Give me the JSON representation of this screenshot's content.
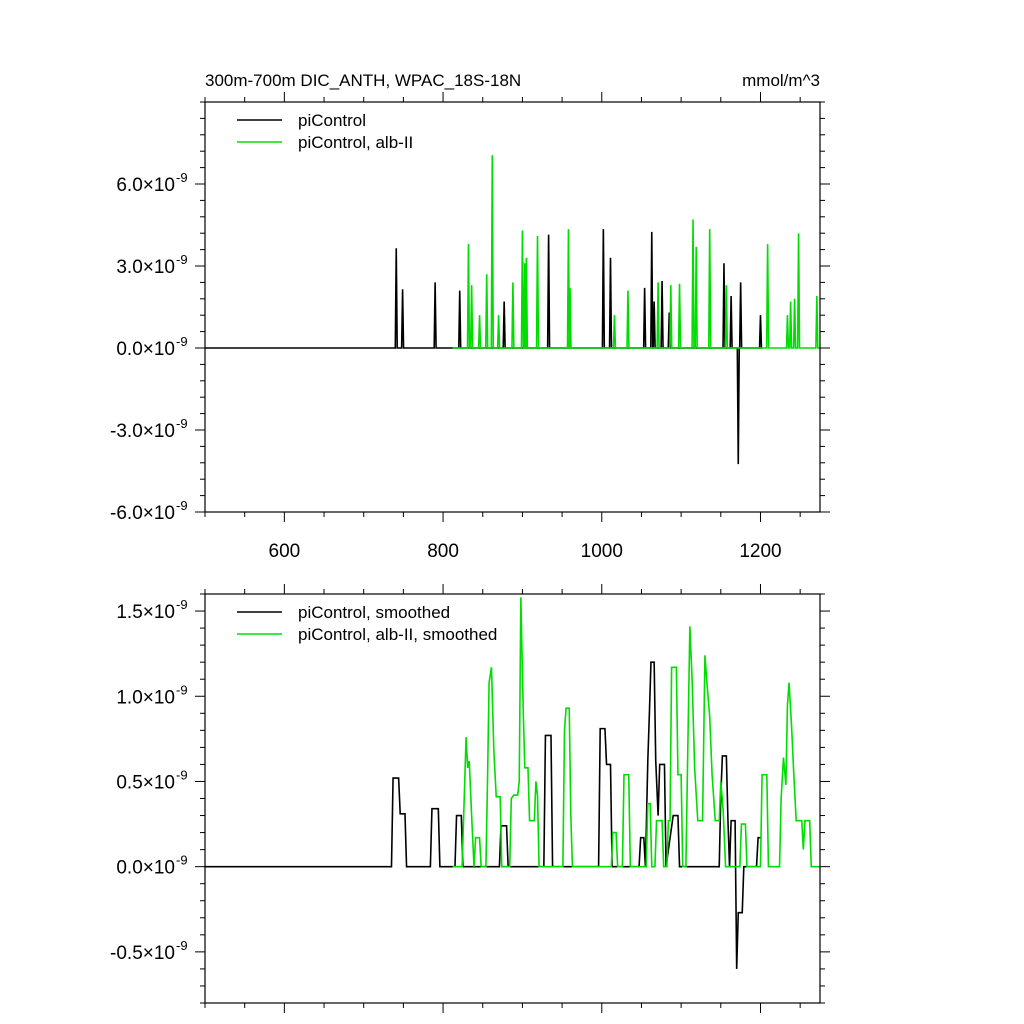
{
  "chart_data": [
    {
      "type": "line",
      "title": "300m-700m DIC_ANTH, WPAC_18S-18N",
      "units": "mmol/m^3",
      "xlim": [
        500,
        1275
      ],
      "ylim": [
        -6.0,
        9.0
      ],
      "y_scale_exponent": "-9",
      "x_ticks": [
        600,
        800,
        1000,
        1200
      ],
      "x_tick_labels": [
        "600",
        "800",
        "1000",
        "1200"
      ],
      "y_ticks": [
        6.0,
        3.0,
        0.0,
        -3.0,
        -6.0
      ],
      "y_tick_labels": [
        "6.0",
        "3.0",
        "0.0",
        "-3.0",
        "-6.0"
      ],
      "y_tick_suffix": "×10",
      "y_tick_exponent": "-9",
      "legend_position": "top-left",
      "series": [
        {
          "name": "piControl",
          "color": "#000000",
          "x_range": [
            500,
            1200
          ],
          "spikes": [
            [
              741,
              3.65
            ],
            [
              749,
              2.15
            ],
            [
              790,
              2.4
            ],
            [
              821,
              2.1
            ],
            [
              877,
              1.7
            ],
            [
              933,
              4.15
            ],
            [
              1002,
              4.35
            ],
            [
              1011,
              3.3
            ],
            [
              1054,
              2.2
            ],
            [
              1063,
              4.25
            ],
            [
              1066,
              1.7
            ],
            [
              1076,
              2.45
            ],
            [
              1085,
              1.3
            ],
            [
              1154,
              3.1
            ],
            [
              1163,
              1.9
            ],
            [
              1172,
              -4.25
            ],
            [
              1175,
              2.4
            ],
            [
              1200,
              1.2
            ]
          ]
        },
        {
          "name": "piControl, alb-II",
          "color": "#00dd00",
          "x_range": [
            812,
            1275
          ],
          "spikes": [
            [
              832,
              3.8
            ],
            [
              836,
              2.3
            ],
            [
              846,
              1.2
            ],
            [
              855,
              2.7
            ],
            [
              862,
              7.05
            ],
            [
              870,
              1.2
            ],
            [
              888,
              2.4
            ],
            [
              900,
              4.3
            ],
            [
              903,
              3.1
            ],
            [
              905,
              3.3
            ],
            [
              919,
              4.1
            ],
            [
              958,
              4.35
            ],
            [
              960,
              2.2
            ],
            [
              1016,
              1.2
            ],
            [
              1033,
              2.1
            ],
            [
              1071,
              2.4
            ],
            [
              1087,
              2.3
            ],
            [
              1098,
              2.35
            ],
            [
              1115,
              4.7
            ],
            [
              1119,
              3.7
            ],
            [
              1136,
              4.35
            ],
            [
              1157,
              2.3
            ],
            [
              1209,
              3.8
            ],
            [
              1234,
              1.2
            ],
            [
              1238,
              1.7
            ],
            [
              1243,
              1.8
            ],
            [
              1248,
              4.2
            ],
            [
              1271,
              1.9
            ]
          ]
        }
      ]
    },
    {
      "type": "line",
      "xlim": [
        500,
        1275
      ],
      "ylim": [
        -0.8,
        1.6
      ],
      "x_ticks": [
        600,
        800,
        1000,
        1200
      ],
      "y_ticks": [
        1.5,
        1.0,
        0.5,
        0.0,
        -0.5
      ],
      "y_tick_labels": [
        "1.5",
        "1.0",
        "0.5",
        "0.0",
        "-0.5"
      ],
      "y_tick_suffix": "×10",
      "y_tick_exponent": "-9",
      "legend_position": "top-left",
      "series": [
        {
          "name": "piControl, smoothed",
          "color": "#000000",
          "x_range": [
            500,
            1200
          ],
          "points": [
            [
              500,
              0
            ],
            [
              735,
              0
            ],
            [
              737,
              0.52
            ],
            [
              744,
              0.52
            ],
            [
              746,
              0.31
            ],
            [
              752,
              0.31
            ],
            [
              754,
              0
            ],
            [
              784,
              0
            ],
            [
              786,
              0.34
            ],
            [
              794,
              0.34
            ],
            [
              796,
              0
            ],
            [
              815,
              0
            ],
            [
              817,
              0.3
            ],
            [
              823,
              0.3
            ],
            [
              825,
              0
            ],
            [
              871,
              0
            ],
            [
              873,
              0.24
            ],
            [
              880,
              0.24
            ],
            [
              882,
              0
            ],
            [
              927,
              0
            ],
            [
              929,
              0.77
            ],
            [
              936,
              0.77
            ],
            [
              938,
              0
            ],
            [
              996,
              0
            ],
            [
              998,
              0.81
            ],
            [
              1004,
              0.81
            ],
            [
              1006,
              0.6
            ],
            [
              1011,
              0.6
            ],
            [
              1013,
              0
            ],
            [
              1047,
              0
            ],
            [
              1049,
              0.17
            ],
            [
              1053,
              0.17
            ],
            [
              1055,
              0
            ],
            [
              1058,
              0.62
            ],
            [
              1060,
              0.9
            ],
            [
              1062,
              1.2
            ],
            [
              1066,
              1.2
            ],
            [
              1068,
              0.62
            ],
            [
              1071,
              0.3
            ],
            [
              1073,
              0.6
            ],
            [
              1079,
              0.6
            ],
            [
              1081,
              0
            ],
            [
              1090,
              0.3
            ],
            [
              1096,
              0.3
            ],
            [
              1098,
              0
            ],
            [
              1148,
              0
            ],
            [
              1150,
              0.42
            ],
            [
              1152,
              0.65
            ],
            [
              1157,
              0.65
            ],
            [
              1159,
              0.27
            ],
            [
              1161,
              0
            ],
            [
              1163,
              0.27
            ],
            [
              1168,
              0.27
            ],
            [
              1170,
              -0.6
            ],
            [
              1172,
              -0.27
            ],
            [
              1177,
              -0.27
            ],
            [
              1179,
              0
            ],
            [
              1195,
              0
            ],
            [
              1197,
              0.17
            ],
            [
              1200,
              0.17
            ]
          ]
        },
        {
          "name": "piControl, alb-II, smoothed",
          "color": "#00dd00",
          "x_range": [
            812,
            1275
          ],
          "points": [
            [
              812,
              0
            ],
            [
              824,
              0
            ],
            [
              826,
              0.3
            ],
            [
              829,
              0.76
            ],
            [
              831,
              0.58
            ],
            [
              833,
              0.62
            ],
            [
              836,
              0.3
            ],
            [
              839,
              0
            ],
            [
              841,
              0.17
            ],
            [
              846,
              0.17
            ],
            [
              848,
              0
            ],
            [
              854,
              0
            ],
            [
              856,
              0.5
            ],
            [
              858,
              1.08
            ],
            [
              861,
              1.17
            ],
            [
              864,
              0.68
            ],
            [
              867,
              0.41
            ],
            [
              872,
              0.41
            ],
            [
              874,
              0
            ],
            [
              884,
              0
            ],
            [
              886,
              0.4
            ],
            [
              889,
              0.42
            ],
            [
              894,
              0.42
            ],
            [
              896,
              0.5
            ],
            [
              898,
              1.58
            ],
            [
              901,
              0.92
            ],
            [
              903,
              0.58
            ],
            [
              907,
              0.58
            ],
            [
              909,
              0.27
            ],
            [
              915,
              0.27
            ],
            [
              917,
              0.5
            ],
            [
              919,
              0.42
            ],
            [
              921,
              0
            ],
            [
              951,
              0
            ],
            [
              953,
              0.8
            ],
            [
              955,
              0.93
            ],
            [
              959,
              0.93
            ],
            [
              961,
              0.3
            ],
            [
              963,
              0
            ],
            [
              1012,
              0
            ],
            [
              1014,
              0.2
            ],
            [
              1018,
              0.2
            ],
            [
              1020,
              0
            ],
            [
              1026,
              0
            ],
            [
              1028,
              0.54
            ],
            [
              1034,
              0.54
            ],
            [
              1036,
              0
            ],
            [
              1056,
              0
            ],
            [
              1058,
              0.37
            ],
            [
              1061,
              0.37
            ],
            [
              1063,
              0
            ],
            [
              1067,
              0
            ],
            [
              1069,
              0.27
            ],
            [
              1076,
              0.27
            ],
            [
              1078,
              0
            ],
            [
              1082,
              0
            ],
            [
              1084,
              0.27
            ],
            [
              1086,
              0.27
            ],
            [
              1088,
              1.17
            ],
            [
              1094,
              1.17
            ],
            [
              1096,
              0.54
            ],
            [
              1100,
              0.54
            ],
            [
              1102,
              0
            ],
            [
              1106,
              0
            ],
            [
              1108,
              0.58
            ],
            [
              1111,
              1.41
            ],
            [
              1114,
              1.08
            ],
            [
              1117,
              0.58
            ],
            [
              1121,
              0.27
            ],
            [
              1127,
              0.27
            ],
            [
              1130,
              1.24
            ],
            [
              1133,
              1.05
            ],
            [
              1136,
              0.88
            ],
            [
              1139,
              0.54
            ],
            [
              1143,
              0.27
            ],
            [
              1148,
              0.27
            ],
            [
              1150,
              0.5
            ],
            [
              1153,
              0.33
            ],
            [
              1156,
              0
            ],
            [
              1174,
              0
            ],
            [
              1176,
              0.25
            ],
            [
              1181,
              0.25
            ],
            [
              1183,
              0
            ],
            [
              1200,
              0
            ],
            [
              1202,
              0.54
            ],
            [
              1208,
              0.54
            ],
            [
              1210,
              0
            ],
            [
              1224,
              0
            ],
            [
              1226,
              0.4
            ],
            [
              1229,
              0.64
            ],
            [
              1232,
              0.48
            ],
            [
              1234,
              0.95
            ],
            [
              1236,
              1.08
            ],
            [
              1239,
              0.84
            ],
            [
              1242,
              0.54
            ],
            [
              1245,
              0.27
            ],
            [
              1252,
              0.27
            ],
            [
              1254,
              0.1
            ],
            [
              1256,
              0.27
            ],
            [
              1262,
              0.27
            ],
            [
              1264,
              0
            ],
            [
              1275,
              0
            ]
          ]
        }
      ]
    }
  ]
}
